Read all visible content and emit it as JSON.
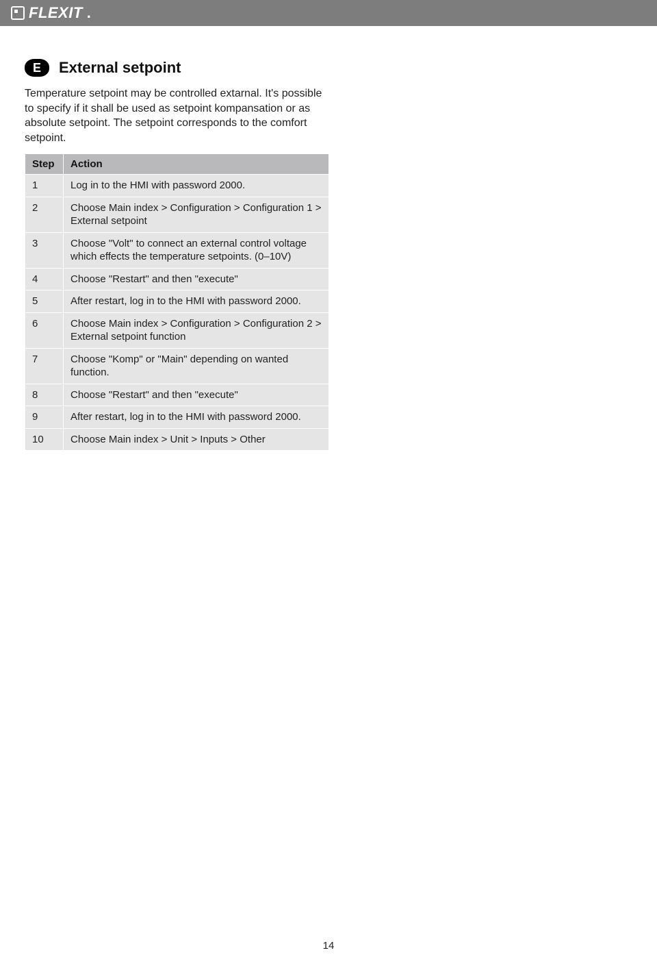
{
  "brand": "FLEXIT",
  "badge_letter": "E",
  "section_title": "External setpoint",
  "intro": "Temperature setpoint may be controlled extarnal. It's possible to specify if it shall be used as setpoint kompansation or as absolute setpoint. The setpoint corresponds to the comfort setpoint.",
  "table": {
    "columns": [
      "Step",
      "Action"
    ],
    "rows": [
      [
        "1",
        "Log in to the HMI with password 2000."
      ],
      [
        "2",
        "Choose Main index > Configuration > Configuration 1 > External setpoint"
      ],
      [
        "3",
        "Choose \"Volt\" to connect an external control voltage which effects the temperature setpoints. (0–10V)"
      ],
      [
        "4",
        "Choose \"Restart\" and then \"execute\""
      ],
      [
        "5",
        "After restart, log in to the HMI with password 2000."
      ],
      [
        "6",
        "Choose Main index > Configuration > Configuration 2 > External setpoint function"
      ],
      [
        "7",
        "Choose \"Komp\" or \"Main\" depending on wanted function."
      ],
      [
        "8",
        "Choose \"Restart\" and then \"execute\""
      ],
      [
        "9",
        "After restart, log in to the HMI with password 2000."
      ],
      [
        "10",
        "Choose Main index > Unit > Inputs > Other"
      ]
    ]
  },
  "page_number": "14",
  "colors": {
    "header_bg": "#7d7d7d",
    "table_header_bg": "#b9b9bb",
    "table_cell_bg": "#e5e5e6",
    "badge_bg": "#000000",
    "page_bg": "#ffffff"
  }
}
